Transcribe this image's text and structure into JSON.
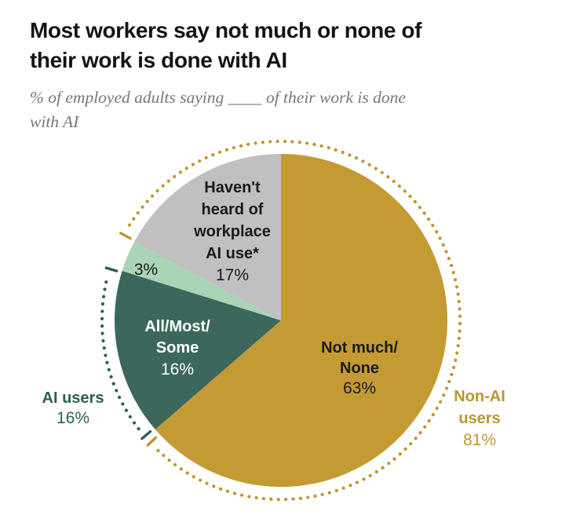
{
  "header": {
    "title_lines": [
      "Most workers say not much or none of",
      "their work is done with AI"
    ],
    "subtitle_lines": [
      "% of employed adults saying ____ of their work is done",
      "with AI"
    ]
  },
  "chart_data": {
    "type": "pie",
    "title": "Most workers say not much or none of their work is done with AI",
    "subtitle": "% of employed adults saying ____ of their work is done with AI",
    "legend_position": "none",
    "start_angle_deg_from_top": 0,
    "direction": "clockwise",
    "total_units": 99,
    "slices": [
      {
        "id": "not-much-none",
        "name_lines": [
          "Not much/",
          "None"
        ],
        "pct_label": "63%",
        "value": 63,
        "color": "#c49a33",
        "label_color": "#1a1a1a"
      },
      {
        "id": "all-most-some",
        "name_lines": [
          "All/Most/",
          "Some"
        ],
        "pct_label": "16%",
        "value": 16,
        "color": "#3b675c",
        "label_color": "#ffffff"
      },
      {
        "id": "unlabeled-sliver",
        "name_lines": [],
        "pct_label": "3%",
        "value": 3,
        "color": "#a9d4b5",
        "label_color": "#1a1a1a"
      },
      {
        "id": "havent-heard",
        "name_lines": [
          "Haven't",
          "heard of",
          "workplace",
          "AI use*"
        ],
        "pct_label": "17%",
        "value": 17,
        "color": "#c0bfc1",
        "label_color": "#1a1a1a"
      }
    ],
    "outer_arcs": [
      {
        "id": "ai-users",
        "name_lines": [
          "AI users"
        ],
        "pct_label": "16%",
        "value": 16,
        "color": "#2e5f53",
        "from_unit": 63,
        "to_unit": 79
      },
      {
        "id": "non-ai-users",
        "name_lines": [
          "Non-AI",
          "users"
        ],
        "pct_label": "81%",
        "value": 81,
        "color": "#bd9630",
        "from_unit": 82,
        "to_unit": 162
      }
    ]
  }
}
